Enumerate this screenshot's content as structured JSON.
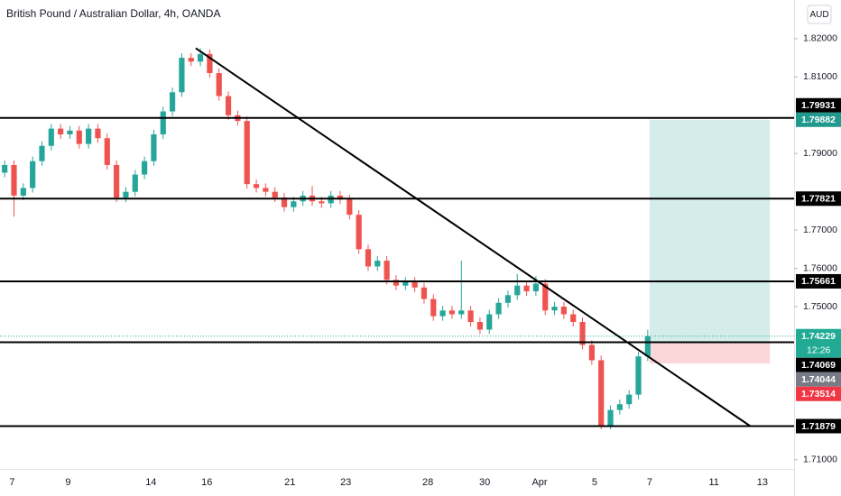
{
  "chart_data": {
    "type": "candlestick",
    "title": "British Pound / Australian Dollar, 4h, OANDA",
    "currency": "AUD",
    "countdown": "12:26",
    "up_color": "#26a69a",
    "down_color": "#ef5350",
    "xlim": [
      -0.5,
      84.7
    ],
    "ylim": [
      1.7076,
      1.8301
    ],
    "xticks": [
      {
        "value": 0.8,
        "label": "7"
      },
      {
        "value": 6.8,
        "label": "9"
      },
      {
        "value": 15.7,
        "label": "14"
      },
      {
        "value": 21.7,
        "label": "16"
      },
      {
        "value": 30.6,
        "label": "21"
      },
      {
        "value": 36.6,
        "label": "23"
      },
      {
        "value": 45.4,
        "label": "28"
      },
      {
        "value": 51.5,
        "label": "30"
      },
      {
        "value": 57.4,
        "label": "Apr"
      },
      {
        "value": 63.3,
        "label": "5"
      },
      {
        "value": 69.2,
        "label": "7"
      },
      {
        "value": 76.1,
        "label": "11"
      },
      {
        "value": 81.3,
        "label": "13"
      }
    ],
    "yticks": [
      {
        "value": 1.82,
        "label": "1.82000"
      },
      {
        "value": 1.81,
        "label": "1.81000"
      },
      {
        "value": 1.79,
        "label": "1.79000"
      },
      {
        "value": 1.77,
        "label": "1.77000"
      },
      {
        "value": 1.76,
        "label": "1.76000"
      },
      {
        "value": 1.75,
        "label": "1.75000"
      },
      {
        "value": 1.71,
        "label": "1.71000"
      }
    ],
    "open": [
      1.785,
      1.787,
      1.779,
      1.781,
      1.788,
      1.792,
      1.7965,
      1.795,
      1.796,
      1.7925,
      1.7965,
      1.794,
      1.787,
      1.7785,
      1.78,
      1.7845,
      1.788,
      1.795,
      1.801,
      1.806,
      1.815,
      1.814,
      1.816,
      1.811,
      1.805,
      1.8,
      1.7985,
      1.782,
      1.781,
      1.78,
      1.7785,
      1.776,
      1.7775,
      1.779,
      1.7775,
      1.777,
      1.779,
      1.778,
      1.774,
      1.765,
      1.7605,
      1.762,
      1.757,
      1.7555,
      1.7565,
      1.755,
      1.752,
      1.7475,
      1.749,
      1.748,
      1.749,
      1.746,
      1.744,
      1.748,
      1.751,
      1.753,
      1.7555,
      1.754,
      1.756,
      1.749,
      1.75,
      1.748,
      1.746,
      1.74,
      1.736,
      1.719,
      1.723,
      1.7245,
      1.727,
      1.737
    ],
    "high": [
      1.7882,
      1.7882,
      1.7822,
      1.7892,
      1.7932,
      1.7977,
      1.7977,
      1.7972,
      1.7972,
      1.7977,
      1.7977,
      1.7952,
      1.7882,
      1.7812,
      1.7857,
      1.7892,
      1.7962,
      1.8022,
      1.8072,
      1.8162,
      1.8162,
      1.8175,
      1.8172,
      1.8122,
      1.8062,
      1.8012,
      1.7997,
      1.7832,
      1.7822,
      1.7812,
      1.7797,
      1.7787,
      1.7802,
      1.7815,
      1.7787,
      1.7802,
      1.7802,
      1.7792,
      1.7752,
      1.7662,
      1.7632,
      1.7632,
      1.7582,
      1.7577,
      1.7577,
      1.7562,
      1.7532,
      1.7502,
      1.7502,
      1.762,
      1.7502,
      1.7472,
      1.7492,
      1.7522,
      1.7542,
      1.7585,
      1.7567,
      1.758,
      1.7572,
      1.7512,
      1.7512,
      1.7492,
      1.7472,
      1.7412,
      1.7372,
      1.7242,
      1.7257,
      1.7282,
      1.7382,
      1.744
    ],
    "low": [
      1.7838,
      1.7735,
      1.7778,
      1.7798,
      1.7868,
      1.7908,
      1.7938,
      1.7938,
      1.7913,
      1.7913,
      1.7928,
      1.7858,
      1.7773,
      1.7773,
      1.7788,
      1.7833,
      1.7868,
      1.7938,
      1.7998,
      1.8048,
      1.8128,
      1.8128,
      1.8098,
      1.8038,
      1.7988,
      1.7973,
      1.7808,
      1.7798,
      1.7788,
      1.7773,
      1.7748,
      1.7748,
      1.7763,
      1.7763,
      1.7758,
      1.7758,
      1.7768,
      1.7728,
      1.7638,
      1.7593,
      1.7593,
      1.7558,
      1.7543,
      1.7543,
      1.7538,
      1.7508,
      1.7463,
      1.7463,
      1.7468,
      1.7468,
      1.7448,
      1.7428,
      1.7428,
      1.7468,
      1.7498,
      1.7518,
      1.7528,
      1.7528,
      1.7478,
      1.7478,
      1.7468,
      1.7448,
      1.7388,
      1.7348,
      1.718,
      1.718,
      1.7218,
      1.7233,
      1.7258,
      1.7358
    ],
    "close": [
      1.787,
      1.779,
      1.781,
      1.788,
      1.792,
      1.7965,
      1.795,
      1.796,
      1.7925,
      1.7965,
      1.794,
      1.787,
      1.7785,
      1.78,
      1.7845,
      1.788,
      1.795,
      1.801,
      1.806,
      1.815,
      1.814,
      1.816,
      1.811,
      1.805,
      1.8,
      1.7985,
      1.782,
      1.781,
      1.78,
      1.7785,
      1.776,
      1.7775,
      1.779,
      1.7775,
      1.777,
      1.779,
      1.778,
      1.774,
      1.765,
      1.7605,
      1.762,
      1.757,
      1.7555,
      1.7565,
      1.755,
      1.752,
      1.7475,
      1.749,
      1.748,
      1.749,
      1.746,
      1.744,
      1.748,
      1.751,
      1.753,
      1.7555,
      1.754,
      1.756,
      1.749,
      1.75,
      1.748,
      1.746,
      1.74,
      1.736,
      1.719,
      1.723,
      1.7245,
      1.727,
      1.737,
      1.74229
    ],
    "levels": [
      1.79931,
      1.77821,
      1.75661,
      1.74069,
      1.71879
    ],
    "trendline": {
      "x": [
        20.5,
        80.0
      ],
      "y": [
        1.8175,
        1.71879
      ]
    },
    "position": {
      "x": [
        69.2,
        82.1
      ],
      "target": 1.79882,
      "entry": 1.74044,
      "stop": 1.73514
    }
  }
}
